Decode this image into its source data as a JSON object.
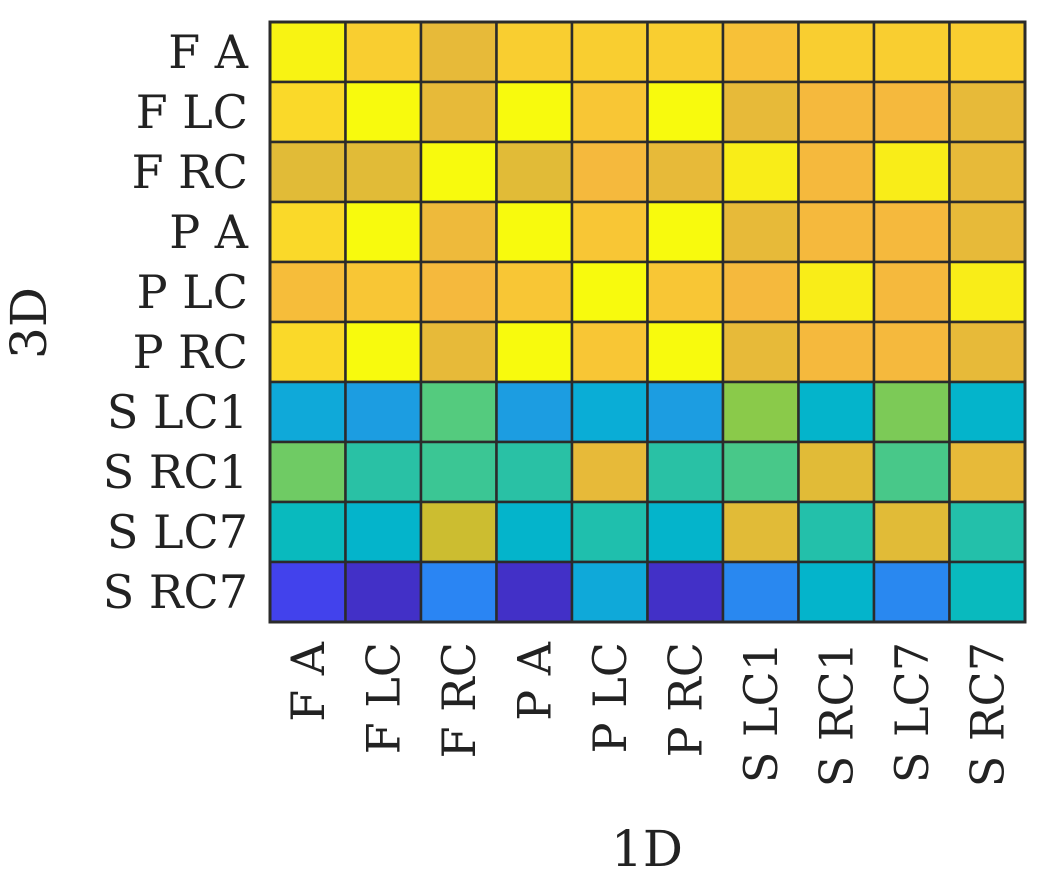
{
  "chart_data": {
    "type": "heatmap",
    "title": "",
    "xlabel": "1D",
    "ylabel": "3D",
    "x_categories": [
      "F A",
      "F LC",
      "F RC",
      "P A",
      "P LC",
      "P RC",
      "S LC1",
      "S RC1",
      "S LC7",
      "S RC7"
    ],
    "y_categories": [
      "F A",
      "F LC",
      "F RC",
      "P A",
      "P LC",
      "P RC",
      "S LC1",
      "S RC1",
      "S LC7",
      "S RC7"
    ],
    "value_range": [
      0,
      1
    ],
    "colormap": "parula",
    "colorbar": false,
    "grid": true,
    "values": [
      [
        0.99,
        0.93,
        0.86,
        0.93,
        0.93,
        0.93,
        0.9,
        0.93,
        0.93,
        0.93
      ],
      [
        0.95,
        1.0,
        0.86,
        1.0,
        0.91,
        1.0,
        0.86,
        0.88,
        0.88,
        0.86
      ],
      [
        0.85,
        0.85,
        1.0,
        0.85,
        0.88,
        0.86,
        0.98,
        0.88,
        0.98,
        0.86
      ],
      [
        0.95,
        1.0,
        0.87,
        1.0,
        0.91,
        1.0,
        0.86,
        0.88,
        0.88,
        0.86
      ],
      [
        0.89,
        0.91,
        0.88,
        0.91,
        1.0,
        0.91,
        0.88,
        0.98,
        0.88,
        0.98
      ],
      [
        0.95,
        1.0,
        0.86,
        1.0,
        0.91,
        1.0,
        0.86,
        0.88,
        0.88,
        0.86
      ],
      [
        0.38,
        0.33,
        0.64,
        0.33,
        0.4,
        0.33,
        0.72,
        0.45,
        0.7,
        0.45
      ],
      [
        0.68,
        0.57,
        0.6,
        0.57,
        0.86,
        0.57,
        0.62,
        0.85,
        0.62,
        0.86
      ],
      [
        0.5,
        0.45,
        0.82,
        0.45,
        0.55,
        0.45,
        0.85,
        0.56,
        0.85,
        0.56
      ],
      [
        0.1,
        0.04,
        0.25,
        0.04,
        0.38,
        0.04,
        0.26,
        0.45,
        0.26,
        0.5
      ]
    ]
  },
  "colors": {
    "background": "#ffffff",
    "grid": "#2b2b2b",
    "text": "#222222"
  }
}
